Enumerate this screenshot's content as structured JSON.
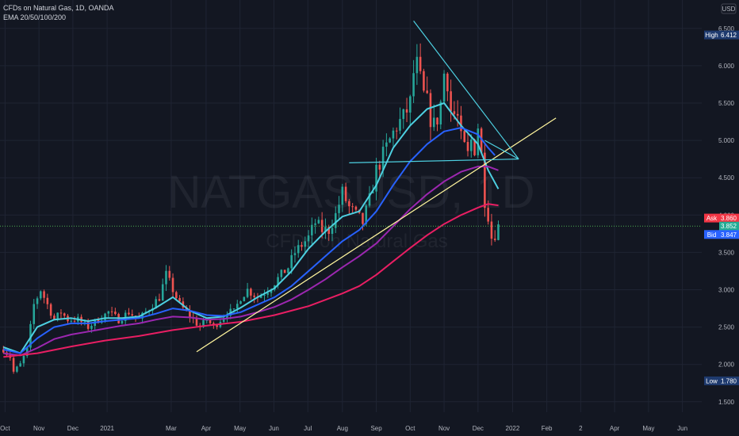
{
  "chart_data": {
    "type": "candlestick",
    "symbol": "CFDs on Natural Gas, 1D, OANDA",
    "indicator": "EMA 20/50/100/200",
    "watermark_symbol": "NATGASUSD, 1D",
    "watermark_name": "CFDs on Natural Gas",
    "currency": "USD",
    "y_ticks": [
      1.5,
      2.0,
      2.5,
      3.0,
      3.5,
      4.0,
      4.5,
      5.0,
      5.5,
      6.0,
      6.5
    ],
    "ylim": [
      1.36,
      6.88
    ],
    "x_labels": [
      {
        "label": "Oct",
        "t": 0.5
      },
      {
        "label": "Nov",
        "t": 10.5
      },
      {
        "label": "Dec",
        "t": 20.5
      },
      {
        "label": "2021",
        "t": 30.6
      },
      {
        "label": "Mar",
        "t": 49.5
      },
      {
        "label": "Apr",
        "t": 59.8
      },
      {
        "label": "May",
        "t": 69.8
      },
      {
        "label": "Jun",
        "t": 79.8
      },
      {
        "label": "Jul",
        "t": 89.8
      },
      {
        "label": "Aug",
        "t": 100.0
      },
      {
        "label": "Sep",
        "t": 110.0
      },
      {
        "label": "Oct",
        "t": 120.0
      },
      {
        "label": "Nov",
        "t": 130.0
      },
      {
        "label": "Dec",
        "t": 140.0
      },
      {
        "label": "2022",
        "t": 150.2
      },
      {
        "label": "Feb",
        "t": 160.3
      },
      {
        "label": "2",
        "t": 170.3
      },
      {
        "label": "Apr",
        "t": 180.3
      },
      {
        "label": "May",
        "t": 190.3
      },
      {
        "label": "Jun",
        "t": 200.3
      }
    ],
    "xlim": [
      -1,
      206
    ],
    "price_points": [
      [
        0,
        2.2
      ],
      [
        2,
        2.1
      ],
      [
        3,
        1.9
      ],
      [
        5,
        2.0
      ],
      [
        7,
        2.2
      ],
      [
        9,
        2.8
      ],
      [
        11,
        3.0
      ],
      [
        13,
        2.8
      ],
      [
        15,
        2.6
      ],
      [
        17,
        2.7
      ],
      [
        19,
        2.6
      ],
      [
        22,
        2.6
      ],
      [
        25,
        2.5
      ],
      [
        28,
        2.6
      ],
      [
        31,
        2.7
      ],
      [
        34,
        2.6
      ],
      [
        37,
        2.7
      ],
      [
        40,
        2.6
      ],
      [
        42,
        2.7
      ],
      [
        44,
        2.8
      ],
      [
        46,
        2.9
      ],
      [
        48,
        3.2
      ],
      [
        50,
        3.0
      ],
      [
        52,
        2.8
      ],
      [
        54,
        2.7
      ],
      [
        56,
        2.6
      ],
      [
        58,
        2.5
      ],
      [
        60,
        2.6
      ],
      [
        62,
        2.5
      ],
      [
        64,
        2.6
      ],
      [
        66,
        2.7
      ],
      [
        68,
        2.7
      ],
      [
        70,
        2.9
      ],
      [
        72,
        3.0
      ],
      [
        75,
        2.9
      ],
      [
        78,
        3.0
      ],
      [
        80,
        3.1
      ],
      [
        82,
        3.2
      ],
      [
        84,
        3.3
      ],
      [
        86,
        3.5
      ],
      [
        88,
        3.6
      ],
      [
        90,
        3.7
      ],
      [
        92,
        3.9
      ],
      [
        94,
        3.8
      ],
      [
        96,
        3.8
      ],
      [
        98,
        4.0
      ],
      [
        100,
        4.3
      ],
      [
        102,
        4.1
      ],
      [
        104,
        4.0
      ],
      [
        106,
        3.9
      ],
      [
        108,
        4.2
      ],
      [
        110,
        4.6
      ],
      [
        112,
        4.8
      ],
      [
        114,
        5.0
      ],
      [
        116,
        5.2
      ],
      [
        118,
        5.3
      ],
      [
        120,
        5.5
      ],
      [
        121,
        5.9
      ],
      [
        122,
        6.0
      ],
      [
        123,
        5.8
      ],
      [
        124,
        5.6
      ],
      [
        125,
        5.5
      ],
      [
        126,
        5.3
      ],
      [
        127,
        5.2
      ],
      [
        128,
        5.3
      ],
      [
        129,
        5.5
      ],
      [
        130,
        5.9
      ],
      [
        131,
        5.8
      ],
      [
        132,
        5.4
      ],
      [
        134,
        5.3
      ],
      [
        135,
        5.0
      ],
      [
        136,
        4.9
      ],
      [
        137,
        4.8
      ],
      [
        138,
        5.0
      ],
      [
        139,
        4.9
      ],
      [
        140,
        5.2
      ],
      [
        141,
        4.8
      ],
      [
        142,
        4.2
      ],
      [
        143,
        4.0
      ],
      [
        144,
        3.7
      ],
      [
        145,
        3.75
      ],
      [
        146,
        3.85
      ]
    ],
    "ema_lines": [
      {
        "color": "#4dd0e1",
        "points": [
          [
            0,
            2.23
          ],
          [
            5,
            2.15
          ],
          [
            10,
            2.5
          ],
          [
            15,
            2.6
          ],
          [
            20,
            2.62
          ],
          [
            25,
            2.58
          ],
          [
            30,
            2.62
          ],
          [
            35,
            2.62
          ],
          [
            40,
            2.64
          ],
          [
            45,
            2.76
          ],
          [
            50,
            2.9
          ],
          [
            55,
            2.72
          ],
          [
            60,
            2.62
          ],
          [
            65,
            2.64
          ],
          [
            70,
            2.76
          ],
          [
            75,
            2.9
          ],
          [
            80,
            3.02
          ],
          [
            85,
            3.25
          ],
          [
            90,
            3.55
          ],
          [
            95,
            3.78
          ],
          [
            100,
            3.98
          ],
          [
            105,
            4.05
          ],
          [
            110,
            4.4
          ],
          [
            115,
            4.9
          ],
          [
            120,
            5.2
          ],
          [
            125,
            5.42
          ],
          [
            130,
            5.5
          ],
          [
            135,
            5.2
          ],
          [
            140,
            4.95
          ],
          [
            143,
            4.6
          ],
          [
            146,
            4.35
          ]
        ]
      },
      {
        "color": "#2862ff",
        "points": [
          [
            0,
            2.2
          ],
          [
            5,
            2.15
          ],
          [
            10,
            2.35
          ],
          [
            15,
            2.5
          ],
          [
            20,
            2.55
          ],
          [
            25,
            2.55
          ],
          [
            30,
            2.58
          ],
          [
            35,
            2.6
          ],
          [
            40,
            2.62
          ],
          [
            45,
            2.68
          ],
          [
            50,
            2.75
          ],
          [
            55,
            2.72
          ],
          [
            60,
            2.66
          ],
          [
            65,
            2.65
          ],
          [
            70,
            2.7
          ],
          [
            75,
            2.8
          ],
          [
            80,
            2.9
          ],
          [
            85,
            3.05
          ],
          [
            90,
            3.25
          ],
          [
            95,
            3.45
          ],
          [
            100,
            3.65
          ],
          [
            105,
            3.8
          ],
          [
            110,
            4.05
          ],
          [
            115,
            4.4
          ],
          [
            120,
            4.72
          ],
          [
            125,
            4.95
          ],
          [
            130,
            5.12
          ],
          [
            135,
            5.17
          ],
          [
            140,
            5.08
          ],
          [
            143,
            4.9
          ],
          [
            145,
            4.8
          ]
        ]
      },
      {
        "color": "#9c27b0",
        "points": [
          [
            0,
            2.15
          ],
          [
            5,
            2.12
          ],
          [
            10,
            2.22
          ],
          [
            15,
            2.34
          ],
          [
            20,
            2.4
          ],
          [
            25,
            2.44
          ],
          [
            30,
            2.48
          ],
          [
            35,
            2.52
          ],
          [
            40,
            2.55
          ],
          [
            45,
            2.6
          ],
          [
            50,
            2.64
          ],
          [
            55,
            2.63
          ],
          [
            60,
            2.6
          ],
          [
            65,
            2.61
          ],
          [
            70,
            2.64
          ],
          [
            75,
            2.7
          ],
          [
            80,
            2.77
          ],
          [
            85,
            2.87
          ],
          [
            90,
            3.0
          ],
          [
            95,
            3.14
          ],
          [
            100,
            3.3
          ],
          [
            105,
            3.45
          ],
          [
            110,
            3.62
          ],
          [
            115,
            3.85
          ],
          [
            120,
            4.08
          ],
          [
            125,
            4.28
          ],
          [
            130,
            4.45
          ],
          [
            135,
            4.58
          ],
          [
            140,
            4.65
          ],
          [
            143,
            4.65
          ],
          [
            146,
            4.6
          ]
        ]
      },
      {
        "color": "#e91e63",
        "points": [
          [
            0,
            2.1
          ],
          [
            10,
            2.15
          ],
          [
            20,
            2.24
          ],
          [
            30,
            2.32
          ],
          [
            40,
            2.38
          ],
          [
            50,
            2.46
          ],
          [
            60,
            2.52
          ],
          [
            70,
            2.57
          ],
          [
            80,
            2.66
          ],
          [
            90,
            2.78
          ],
          [
            100,
            2.95
          ],
          [
            105,
            3.05
          ],
          [
            110,
            3.2
          ],
          [
            115,
            3.38
          ],
          [
            120,
            3.56
          ],
          [
            125,
            3.73
          ],
          [
            130,
            3.88
          ],
          [
            135,
            4.0
          ],
          [
            140,
            4.1
          ],
          [
            143,
            4.15
          ],
          [
            146,
            4.13
          ]
        ]
      }
    ],
    "drawings": [
      {
        "name": "ascending-trendline",
        "color": "#fff59d",
        "from": [
          57,
          2.17
        ],
        "to": [
          163,
          5.3
        ]
      },
      {
        "name": "horizontal-resistance",
        "color": "#4dd0e1",
        "from": [
          102,
          4.7
        ],
        "to": [
          152,
          4.75
        ]
      },
      {
        "name": "descending-trendline",
        "color": "#4dd0e1",
        "from": [
          121,
          6.6
        ],
        "to": [
          152,
          4.75
        ]
      },
      {
        "name": "triangle-lower",
        "color": "#4dd0e1",
        "from": [
          142,
          5.0
        ],
        "to": [
          152,
          4.75
        ]
      }
    ],
    "current_price": 3.852,
    "tags": [
      {
        "name": "high",
        "label": "High",
        "value": "6.412",
        "y": 6.412,
        "bg": "#1e3a6e",
        "fg": "#ffffff"
      },
      {
        "name": "ask",
        "label": "Ask",
        "value": "3.860",
        "y": 3.96,
        "bg": "#f23645",
        "fg": "#ffffff"
      },
      {
        "name": "last",
        "label": "",
        "value": "3.852",
        "y": 3.852,
        "bg": "#22ab94",
        "fg": "#ffffff"
      },
      {
        "name": "bid",
        "label": "Bid",
        "value": "3.847",
        "y": 3.74,
        "bg": "#2962ff",
        "fg": "#ffffff"
      },
      {
        "name": "low",
        "label": "Low",
        "value": "1.780",
        "y": 1.78,
        "bg": "#1e3a6e",
        "fg": "#ffffff"
      }
    ],
    "colors": {
      "up": "#26a69a",
      "down": "#ef5350",
      "bg": "#131722",
      "grid": "#1f2433",
      "axis_text": "#b2b5be",
      "price_line": "#4caf50"
    }
  }
}
